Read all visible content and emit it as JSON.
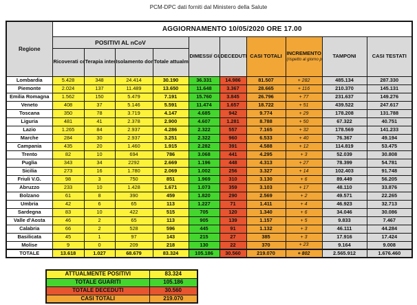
{
  "title": "PCM-DPC dati forniti dal Ministero della Salute",
  "banner": "AGGIORNAMENTO 10/05/2020 ORE 17.00",
  "colors": {
    "yellow": "#fdf23a",
    "green": "#44d62e",
    "red": "#e75430",
    "orange": "#f2a636",
    "header_grey": "#d9d9d9"
  },
  "table": {
    "group_header": "POSITIVI AL nCoV",
    "col_headers": {
      "regione": "Regione",
      "ricoverati": "Ricoverati con sintomi",
      "terapia": "Terapia intensiva",
      "isolamento": "Isolamento domiciliare",
      "totale_positivi": "Totale attualmente positivi",
      "dimessi": "DIMESSI/ GUARITI",
      "deceduti": "DECEDUTI",
      "casi_totali": "CASI TOTALI",
      "incremento": "INCREMENTO CASI TOTALI",
      "incremento_note": "(rispetto al giorno precedente)",
      "tamponi": "TAMPONI",
      "casi_testati": "CASI TESTATI"
    },
    "rows": [
      {
        "name": "Lombardia",
        "values": [
          "5.428",
          "348",
          "24.414",
          "30.190",
          "36.331",
          "14.986",
          "81.507",
          "+ 282",
          "485.134",
          "287.330"
        ]
      },
      {
        "name": "Piemonte",
        "values": [
          "2.024",
          "137",
          "11.489",
          "13.650",
          "11.648",
          "3.367",
          "28.665",
          "+ 116",
          "210.370",
          "145.131"
        ]
      },
      {
        "name": "Emilia Romagna",
        "values": [
          "1.562",
          "150",
          "5.479",
          "7.191",
          "15.760",
          "3.845",
          "26.796",
          "+ 77",
          "231.637",
          "149.276"
        ]
      },
      {
        "name": "Veneto",
        "values": [
          "408",
          "37",
          "5.146",
          "5.591",
          "11.474",
          "1.657",
          "18.722",
          "+ 51",
          "439.522",
          "247.617"
        ]
      },
      {
        "name": "Toscana",
        "values": [
          "350",
          "78",
          "3.719",
          "4.147",
          "4.685",
          "942",
          "9.774",
          "+ 29",
          "178.208",
          "131.788"
        ]
      },
      {
        "name": "Liguria",
        "values": [
          "481",
          "41",
          "2.378",
          "2.900",
          "4.607",
          "1.281",
          "8.788",
          "+ 50",
          "67.322",
          "40.751"
        ]
      },
      {
        "name": "Lazio",
        "values": [
          "1.265",
          "84",
          "2.937",
          "4.286",
          "2.322",
          "557",
          "7.165",
          "+ 32",
          "178.569",
          "141.233"
        ]
      },
      {
        "name": "Marche",
        "values": [
          "284",
          "30",
          "2.937",
          "3.251",
          "2.322",
          "960",
          "6.533",
          "+ 40",
          "76.367",
          "49.194"
        ]
      },
      {
        "name": "Campania",
        "values": [
          "435",
          "20",
          "1.460",
          "1.915",
          "2.282",
          "391",
          "4.588",
          "+ 12",
          "114.819",
          "53.475"
        ]
      },
      {
        "name": "Trento",
        "values": [
          "82",
          "10",
          "694",
          "786",
          "3.068",
          "441",
          "4.295",
          "+ 3",
          "52.039",
          "30.808"
        ]
      },
      {
        "name": "Puglia",
        "values": [
          "343",
          "34",
          "2292",
          "2.669",
          "1.196",
          "448",
          "4.313",
          "+ 27",
          "78.399",
          "54.781"
        ]
      },
      {
        "name": "Sicilia",
        "values": [
          "273",
          "16",
          "1.780",
          "2.069",
          "1.002",
          "256",
          "3.327",
          "+ 14",
          "102.403",
          "91.748"
        ]
      },
      {
        "name": "Friuli V.G.",
        "values": [
          "98",
          "3",
          "750",
          "851",
          "1.969",
          "310",
          "3.130",
          "+ 6",
          "89.449",
          "56.205"
        ]
      },
      {
        "name": "Abruzzo",
        "values": [
          "233",
          "10",
          "1.428",
          "1.671",
          "1.073",
          "359",
          "3.103",
          "+ 17",
          "48.110",
          "33.876"
        ]
      },
      {
        "name": "Bolzano",
        "values": [
          "61",
          "8",
          "390",
          "459",
          "1.820",
          "290",
          "2.569",
          "+ 2",
          "49.571",
          "22.265"
        ]
      },
      {
        "name": "Umbria",
        "values": [
          "42",
          "6",
          "65",
          "113",
          "1.227",
          "71",
          "1.411",
          "+ 4",
          "46.923",
          "32.713"
        ]
      },
      {
        "name": "Sardegna",
        "values": [
          "83",
          "10",
          "422",
          "515",
          "705",
          "120",
          "1.340",
          "+ 6",
          "34.046",
          "30.086"
        ]
      },
      {
        "name": "Valle d'Aosta",
        "values": [
          "46",
          "2",
          "65",
          "113",
          "905",
          "139",
          "1.157",
          "+ 5",
          "9.833",
          "7.467"
        ]
      },
      {
        "name": "Calabria",
        "values": [
          "66",
          "2",
          "528",
          "596",
          "445",
          "91",
          "1.132",
          "+ 3",
          "46.111",
          "44.284"
        ]
      },
      {
        "name": "Basilicata",
        "values": [
          "45",
          "1",
          "97",
          "143",
          "215",
          "27",
          "385",
          "+ 3",
          "17.916",
          "17.424"
        ]
      },
      {
        "name": "Molise",
        "values": [
          "9",
          "0",
          "209",
          "218",
          "130",
          "22",
          "370",
          "+ 23",
          "9.164",
          "9.008"
        ]
      }
    ],
    "totale": {
      "name": "TOTALE",
      "values": [
        "13.618",
        "1.027",
        "68.679",
        "83.324",
        "105.186",
        "30.560",
        "219.070",
        "+ 802",
        "2.565.912",
        "1.676.460"
      ]
    }
  },
  "summary": {
    "rows": [
      {
        "label": "ATTUALMENTE POSITIVI",
        "value": "83.324",
        "color": "yellow"
      },
      {
        "label": "TOTALE GUARITI",
        "value": "105.186",
        "color": "green"
      },
      {
        "label": "TOTALE DECEDUTI",
        "value": "30.560",
        "color": "red"
      },
      {
        "label": "CASI TOTALI",
        "value": "219.070",
        "color": "orange"
      }
    ]
  }
}
